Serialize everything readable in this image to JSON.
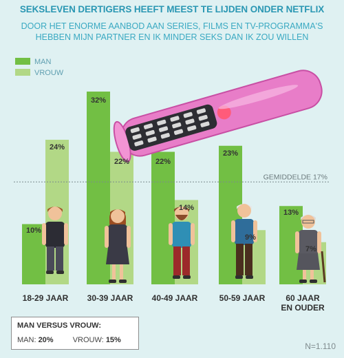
{
  "title": "SEKSLEVEN DERTIGERS HEEFT MEEST TE LIJDEN ONDER NETFLIX",
  "subtitle_line1": "DOOR HET ENORME AANBOD AAN SERIES, FILMS EN TV-PROGRAMMA'S",
  "subtitle_line2": "HEBBEN MIJN PARTNER EN IK MINDER SEKS DAN IK ZOU WILLEN",
  "summary": {
    "title": "MAN VERSUS VROUW:",
    "man_label": "MAN:",
    "man_value": "20%",
    "vrouw_label": "VROUW:",
    "vrouw_value": "15%"
  },
  "sample_size": "N=1.110",
  "colors": {
    "man": "#72bf44",
    "vrouw": "#b2d886",
    "title": "#2a97b3",
    "background": "#dff1f2"
  },
  "illustration": {
    "remote": "tv-remote-in-condom-illustration",
    "figures": [
      "young-man-figure",
      "young-woman-figure",
      "bearded-man-figure",
      "grey-haired-man-figure",
      "elderly-woman-figure"
    ]
  },
  "chart_data": {
    "type": "bar",
    "categories": [
      [
        "18-29 JAAR"
      ],
      [
        "30-39 JAAR"
      ],
      [
        "40-49 JAAR"
      ],
      [
        "50-59 JAAR"
      ],
      [
        "60 JAAR",
        "EN OUDER"
      ]
    ],
    "series": [
      {
        "name": "MAN",
        "values": [
          10,
          32,
          22,
          23,
          13
        ]
      },
      {
        "name": "VROUW",
        "values": [
          24,
          22,
          14,
          9,
          7
        ]
      }
    ],
    "value_labels": {
      "MAN": [
        "10%",
        "32%",
        "22%",
        "23%",
        "13%"
      ],
      "VROUW": [
        "24%",
        "22%",
        "14%",
        "9%",
        "7%"
      ]
    },
    "reference_line": {
      "label": "GEMIDDELDE 17%",
      "value": 17
    },
    "legend": "top-left",
    "ylim": [
      0,
      32
    ],
    "grid": false
  }
}
